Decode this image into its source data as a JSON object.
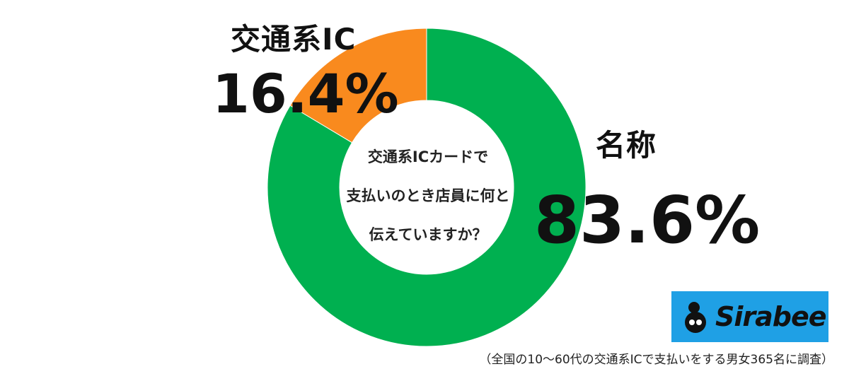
{
  "chart_data": {
    "type": "pie",
    "donut": true,
    "slices": [
      {
        "label": "名称",
        "value": 83.6,
        "display": "83.6%",
        "color": "#00b050"
      },
      {
        "label": "交通系IC",
        "value": 16.4,
        "display": "16.4%",
        "color": "#f98a1e"
      }
    ],
    "center_text": [
      "交通系ICカードで",
      "支払いのとき店員に何と",
      "伝えていますか？"
    ]
  },
  "logo": {
    "text": "Sirabee",
    "background": "#1fa0e5"
  },
  "footnote": "（全国の10〜60代の交通系ICで支払いをする男女365名に調査）"
}
